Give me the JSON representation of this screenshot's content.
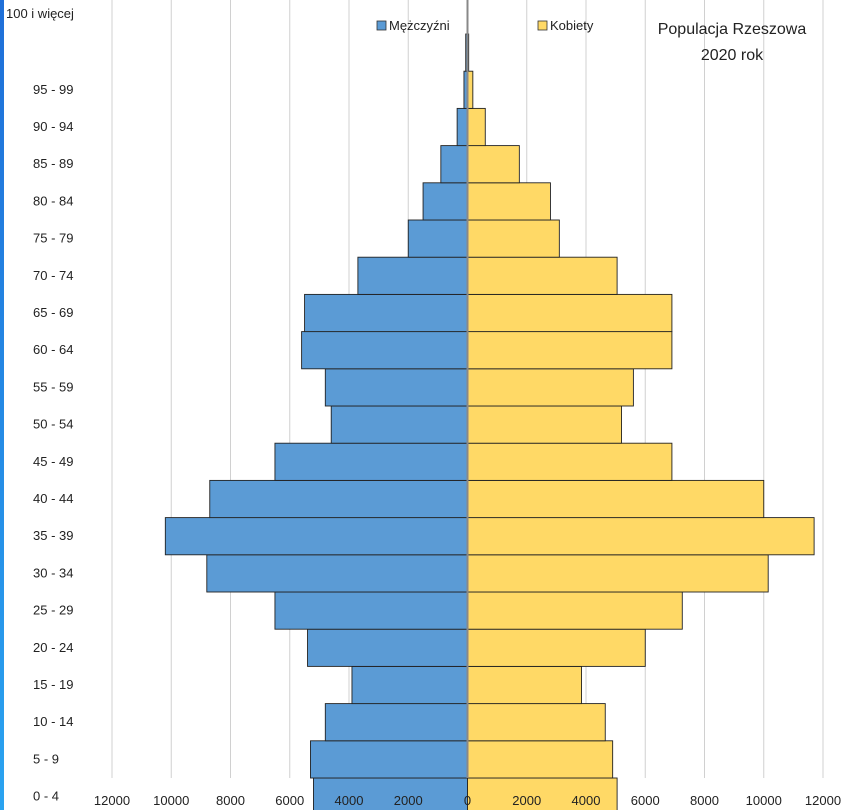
{
  "chart_data": {
    "type": "bar",
    "title_lines": [
      "Populacja Rzeszowa",
      "2020 rok"
    ],
    "categories": [
      "0  -  4",
      "5  -  9",
      "10  -  14",
      "15  -  19",
      "20  -  24",
      "25  -  29",
      "30  -  34",
      "35  -  39",
      "40  -  44",
      "45  -  49",
      "50  -  54",
      "55  -  59",
      "60  -  64",
      "65  -  69",
      "70  -  74",
      "75  -  79",
      "80  -  84",
      "85  -  89",
      "90  -  94",
      "95  -  99",
      "100 i więcej"
    ],
    "series": [
      {
        "name": "Mężczyźni",
        "side": "left",
        "color": "#5b9bd5",
        "values": [
          5200,
          5300,
          4800,
          3900,
          5400,
          6500,
          8800,
          10200,
          8700,
          6500,
          4600,
          4800,
          5600,
          5500,
          3700,
          2000,
          1500,
          900,
          350,
          120,
          60
        ]
      },
      {
        "name": "Kobiety",
        "side": "right",
        "color": "#ffd966",
        "values": [
          5050,
          4900,
          4650,
          3850,
          6000,
          7250,
          10150,
          11700,
          10000,
          6900,
          5200,
          5600,
          6900,
          6900,
          5050,
          3100,
          2800,
          1750,
          600,
          180,
          40
        ]
      }
    ],
    "x_ticks": [
      "12000",
      "10000",
      "8000",
      "6000",
      "4000",
      "2000",
      "0",
      "2000",
      "4000",
      "6000",
      "8000",
      "10000",
      "12000"
    ],
    "xlim": [
      -12000,
      12000
    ],
    "grid": "vertical",
    "legend_position": "top"
  }
}
